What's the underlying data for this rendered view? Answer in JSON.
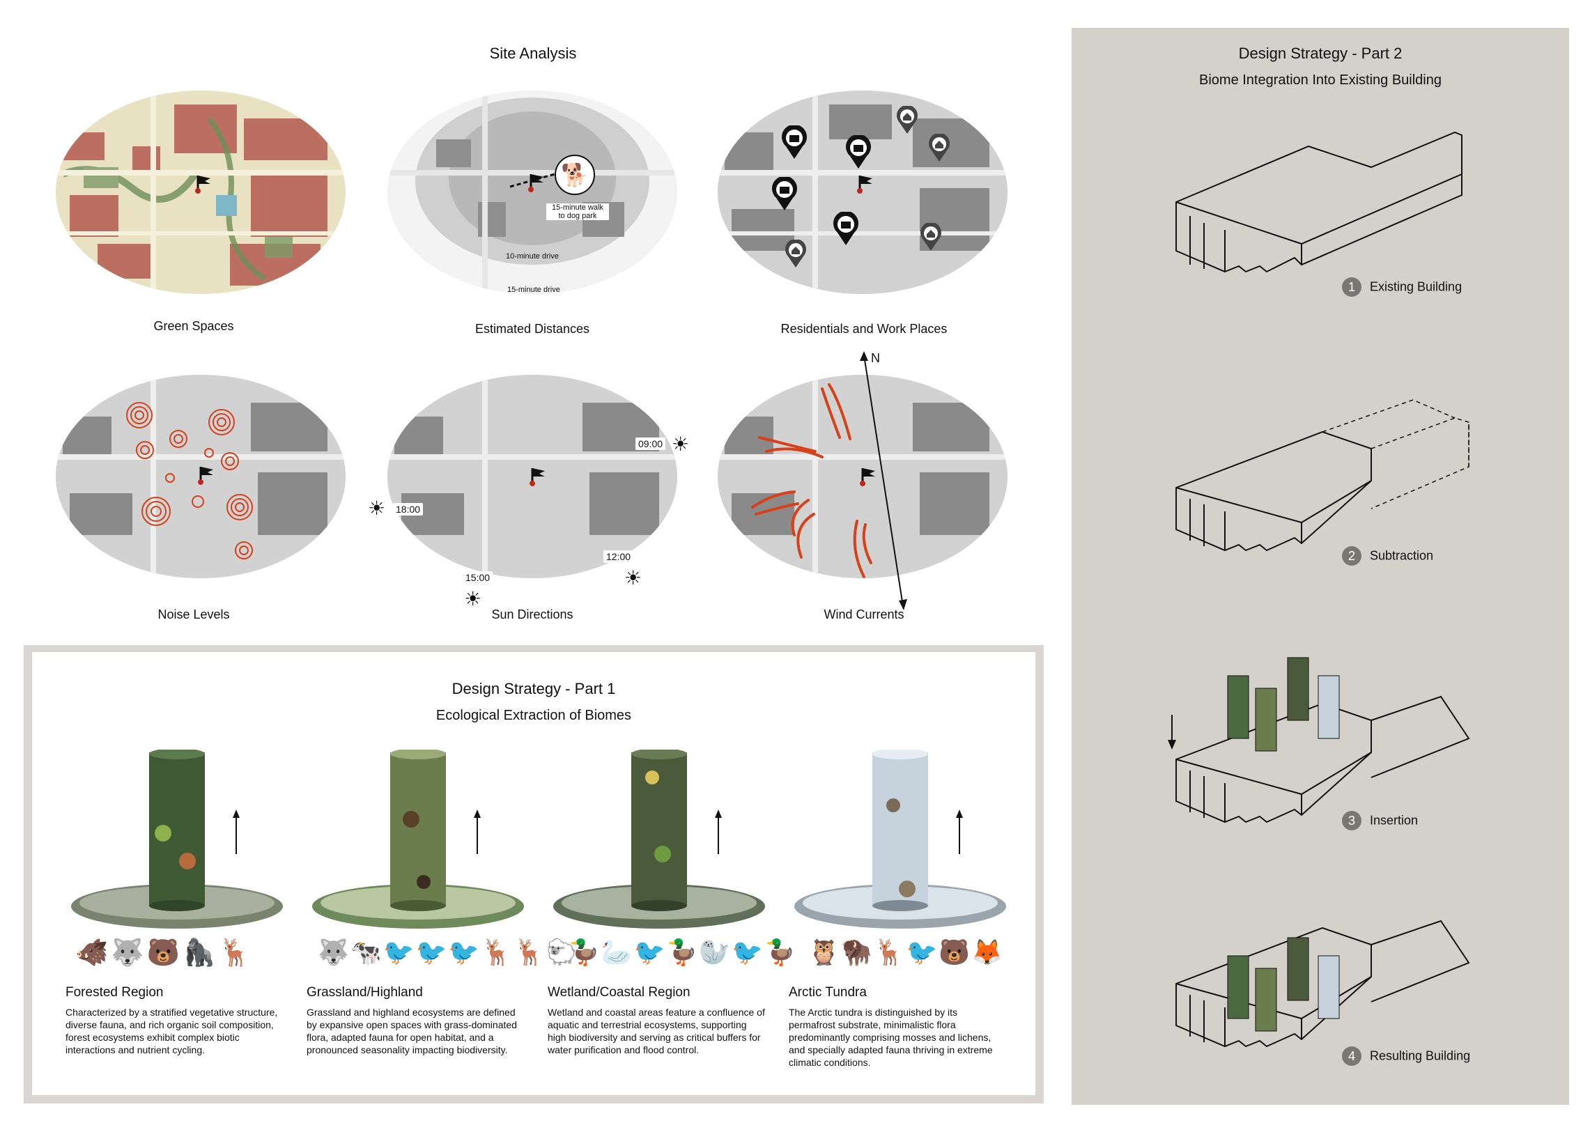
{
  "site_analysis": {
    "title": "Site Analysis",
    "maps": [
      {
        "caption": "Green Spaces"
      },
      {
        "caption": "Estimated Distances"
      },
      {
        "caption": "Residentials and Work Places"
      },
      {
        "caption": "Noise Levels"
      },
      {
        "caption": "Sun Directions"
      },
      {
        "caption": "Wind Currents"
      }
    ],
    "distances": {
      "walk": "15-minute walk to dog park",
      "walk_line1": "15-minute walk",
      "walk_line2": "to dog park",
      "drive10": "10-minute drive",
      "drive15": "15-minute drive"
    },
    "sun_times": [
      "09:00",
      "18:00",
      "15:00",
      "12:00"
    ],
    "north_label": "N"
  },
  "part1": {
    "title": "Design Strategy - Part 1",
    "subtitle": "Ecological Extraction of Biomes",
    "biomes": [
      {
        "name": "Forested Region",
        "text": "Characterized by a stratified vegetative structure, diverse fauna, and rich organic soil composition, forest ecosystems exhibit complex biotic interactions and nutrient cycling."
      },
      {
        "name": "Grassland/Highland",
        "text": "Grassland and highland ecosystems are defined by expansive open spaces with grass-dominated flora, adapted fauna for open habitat, and a pronounced seasonality impacting biodiversity."
      },
      {
        "name": "Wetland/Coastal Region",
        "text": "Wetland and coastal areas feature a confluence of aquatic and terrestrial ecosystems, supporting high biodiversity and serving as critical buffers for water purification and flood control."
      },
      {
        "name": "Arctic Tundra",
        "text": "The Arctic tundra is distinguished by its permafrost substrate, minimalistic flora predominantly comprising mosses and lichens, and specially adapted fauna thriving in extreme climatic conditions."
      }
    ]
  },
  "part2": {
    "title": "Design Strategy - Part 2",
    "subtitle": "Biome Integration Into Existing Building",
    "steps": [
      {
        "num": "1",
        "label": "Existing Building"
      },
      {
        "num": "2",
        "label": "Subtraction"
      },
      {
        "num": "3",
        "label": "Insertion"
      },
      {
        "num": "4",
        "label": "Resulting Building"
      }
    ]
  },
  "colors": {
    "accent_red": "#d8401a",
    "panel_grey": "#d4d0ca",
    "map_grey": "#cfcfcf"
  }
}
